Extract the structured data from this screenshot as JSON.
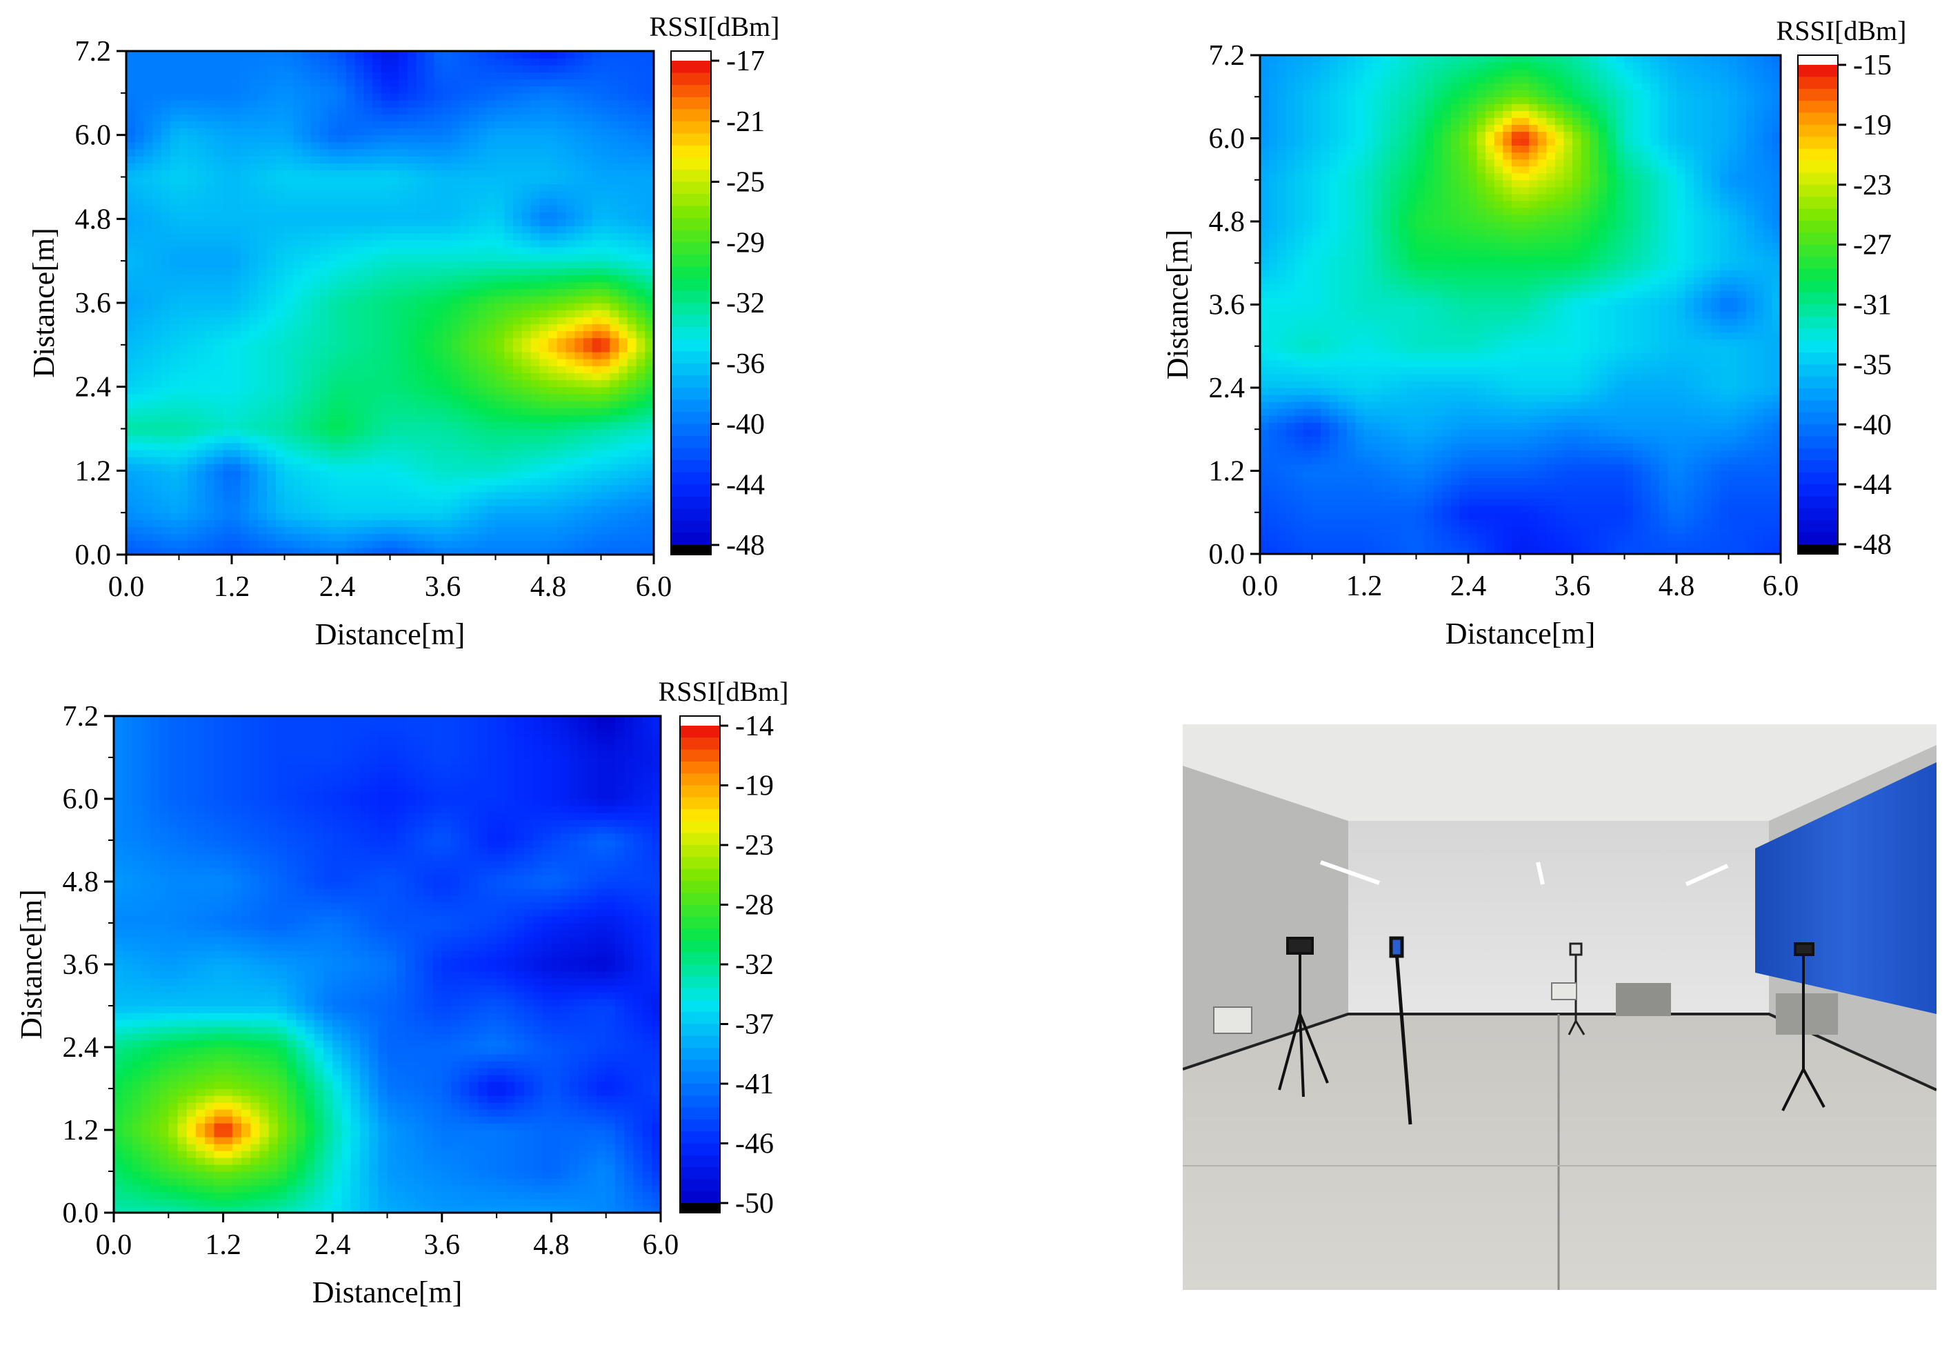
{
  "chart_data": [
    {
      "type": "heatmap",
      "title": "",
      "xlabel": "Distance[m]",
      "ylabel": "Distance[m]",
      "colorbar_label": "RSSI[dBm]",
      "xlim": [
        0,
        6
      ],
      "ylim": [
        0,
        7.2
      ],
      "x_ticks": [
        "0.0",
        "1.2",
        "2.4",
        "3.6",
        "4.8",
        "6.0"
      ],
      "y_ticks": [
        "0.0",
        "1.2",
        "2.4",
        "3.6",
        "4.8",
        "6.0",
        "7.2"
      ],
      "colorbar_ticks": [
        "-17",
        "-21",
        "-25",
        "-29",
        "-32",
        "-36",
        "-40",
        "-44",
        "-48"
      ],
      "colorbar_range": [
        -48,
        -17
      ],
      "x": [
        0,
        0.6,
        1.2,
        1.8,
        2.4,
        3.0,
        3.6,
        4.2,
        4.8,
        5.4,
        6.0
      ],
      "y": [
        0,
        0.6,
        1.2,
        1.8,
        2.4,
        3.0,
        3.6,
        4.2,
        4.8,
        5.4,
        6.0,
        6.6,
        7.2
      ],
      "z": [
        [
          -42,
          -41,
          -42,
          -41,
          -40,
          -42,
          -40,
          -40,
          -40,
          -41,
          -41
        ],
        [
          -39,
          -38,
          -40,
          -37,
          -36,
          -36,
          -36,
          -38,
          -38,
          -39,
          -40
        ],
        [
          -38,
          -37,
          -41,
          -36,
          -35,
          -35,
          -34,
          -34,
          -35,
          -36,
          -37
        ],
        [
          -33,
          -33,
          -34,
          -33,
          -31,
          -33,
          -33,
          -32,
          -32,
          -33,
          -34
        ],
        [
          -36,
          -35,
          -35,
          -34,
          -32,
          -32,
          -31,
          -29,
          -27,
          -26,
          -30
        ],
        [
          -37,
          -36,
          -35,
          -34,
          -33,
          -32,
          -30,
          -27,
          -22,
          -17,
          -27
        ],
        [
          -38,
          -37,
          -37,
          -35,
          -33,
          -32,
          -31,
          -29,
          -28,
          -26,
          -31
        ],
        [
          -37,
          -38,
          -38,
          -36,
          -35,
          -34,
          -34,
          -34,
          -34,
          -34,
          -35
        ],
        [
          -38,
          -37,
          -37,
          -37,
          -37,
          -37,
          -37,
          -36,
          -40,
          -37,
          -38
        ],
        [
          -37,
          -36,
          -37,
          -36,
          -36,
          -36,
          -37,
          -37,
          -37,
          -38,
          -38
        ],
        [
          -41,
          -37,
          -38,
          -38,
          -41,
          -40,
          -40,
          -38,
          -38,
          -39,
          -40
        ],
        [
          -40,
          -40,
          -40,
          -39,
          -40,
          -44,
          -42,
          -41,
          -40,
          -41,
          -42
        ],
        [
          -40,
          -40,
          -40,
          -40,
          -42,
          -46,
          -41,
          -43,
          -45,
          -42,
          -42
        ]
      ]
    },
    {
      "type": "heatmap",
      "title": "",
      "xlabel": "Distance[m]",
      "ylabel": "Distance[m]",
      "colorbar_label": "RSSI[dBm]",
      "xlim": [
        0,
        6
      ],
      "ylim": [
        0,
        7.2
      ],
      "x_ticks": [
        "0.0",
        "1.2",
        "2.4",
        "3.6",
        "4.8",
        "6.0"
      ],
      "y_ticks": [
        "0.0",
        "1.2",
        "2.4",
        "3.6",
        "4.8",
        "6.0",
        "7.2"
      ],
      "colorbar_ticks": [
        "-15",
        "-19",
        "-23",
        "-27",
        "-31",
        "-35",
        "-40",
        "-44",
        "-48"
      ],
      "colorbar_range": [
        -48,
        -15
      ],
      "x": [
        0,
        0.6,
        1.2,
        1.8,
        2.4,
        3.0,
        3.6,
        4.2,
        4.8,
        5.4,
        6.0
      ],
      "y": [
        0,
        0.6,
        1.2,
        1.8,
        2.4,
        3.0,
        3.6,
        4.2,
        4.8,
        5.4,
        6.0,
        6.6,
        7.2
      ],
      "z": [
        [
          -43,
          -42,
          -42,
          -41,
          -42,
          -45,
          -44,
          -42,
          -42,
          -42,
          -43
        ],
        [
          -42,
          -41,
          -41,
          -41,
          -44,
          -44,
          -43,
          -43,
          -40,
          -42,
          -42
        ],
        [
          -41,
          -40,
          -40,
          -39,
          -41,
          -41,
          -42,
          -42,
          -39,
          -41,
          -41
        ],
        [
          -40,
          -43,
          -38,
          -37,
          -38,
          -38,
          -39,
          -38,
          -38,
          -38,
          -40
        ],
        [
          -36,
          -36,
          -35,
          -36,
          -36,
          -35,
          -35,
          -37,
          -37,
          -36,
          -37
        ],
        [
          -34,
          -33,
          -34,
          -33,
          -33,
          -34,
          -34,
          -35,
          -36,
          -36,
          -37
        ],
        [
          -34,
          -34,
          -33,
          -33,
          -32,
          -32,
          -34,
          -35,
          -36,
          -40,
          -36
        ],
        [
          -36,
          -34,
          -33,
          -30,
          -30,
          -30,
          -30,
          -32,
          -34,
          -36,
          -37
        ],
        [
          -37,
          -35,
          -33,
          -29,
          -28,
          -27,
          -28,
          -31,
          -34,
          -36,
          -39
        ],
        [
          -37,
          -35,
          -33,
          -30,
          -27,
          -22,
          -25,
          -31,
          -34,
          -38,
          -39
        ],
        [
          -38,
          -36,
          -34,
          -31,
          -26,
          -15,
          -24,
          -33,
          -36,
          -37,
          -40
        ],
        [
          -38,
          -36,
          -34,
          -32,
          -29,
          -26,
          -30,
          -33,
          -36,
          -37,
          -39
        ],
        [
          -38,
          -37,
          -35,
          -33,
          -32,
          -31,
          -32,
          -35,
          -37,
          -38,
          -40
        ]
      ]
    },
    {
      "type": "heatmap",
      "title": "",
      "xlabel": "Distance[m]",
      "ylabel": "Distance[m]",
      "colorbar_label": "RSSI[dBm]",
      "xlim": [
        0,
        6
      ],
      "ylim": [
        0,
        7.2
      ],
      "x_ticks": [
        "0.0",
        "1.2",
        "2.4",
        "3.6",
        "4.8",
        "6.0"
      ],
      "y_ticks": [
        "0.0",
        "1.2",
        "2.4",
        "3.6",
        "4.8",
        "6.0",
        "7.2"
      ],
      "colorbar_ticks": [
        "-14",
        "-19",
        "-23",
        "-28",
        "-32",
        "-37",
        "-41",
        "-46",
        "-50"
      ],
      "colorbar_range": [
        -50,
        -14
      ],
      "x": [
        0,
        0.6,
        1.2,
        1.8,
        2.4,
        3.0,
        3.6,
        4.2,
        4.8,
        5.4,
        6.0
      ],
      "y": [
        0,
        0.6,
        1.2,
        1.8,
        2.4,
        3.0,
        3.6,
        4.2,
        4.8,
        5.4,
        6.0,
        6.6,
        7.2
      ],
      "z": [
        [
          -33,
          -33,
          -32,
          -33,
          -35,
          -38,
          -39,
          -39,
          -39,
          -40,
          -42
        ],
        [
          -31,
          -28,
          -26,
          -28,
          -34,
          -39,
          -40,
          -41,
          -42,
          -40,
          -45
        ],
        [
          -29,
          -25,
          -14,
          -25,
          -33,
          -39,
          -41,
          -41,
          -42,
          -42,
          -46
        ],
        [
          -30,
          -27,
          -25,
          -27,
          -34,
          -41,
          -42,
          -47,
          -43,
          -46,
          -44
        ],
        [
          -32,
          -30,
          -29,
          -30,
          -37,
          -42,
          -42,
          -41,
          -43,
          -44,
          -45
        ],
        [
          -37,
          -37,
          -37,
          -37,
          -41,
          -42,
          -44,
          -43,
          -45,
          -44,
          -47
        ],
        [
          -38,
          -39,
          -38,
          -39,
          -40,
          -41,
          -45,
          -46,
          -48,
          -49,
          -45
        ],
        [
          -40,
          -40,
          -41,
          -42,
          -41,
          -43,
          -43,
          -44,
          -46,
          -47,
          -45
        ],
        [
          -39,
          -40,
          -40,
          -42,
          -44,
          -43,
          -45,
          -43,
          -42,
          -44,
          -44
        ],
        [
          -40,
          -41,
          -42,
          -43,
          -44,
          -45,
          -43,
          -46,
          -44,
          -42,
          -45
        ],
        [
          -40,
          -42,
          -43,
          -44,
          -45,
          -46,
          -45,
          -45,
          -46,
          -48,
          -46
        ],
        [
          -40,
          -42,
          -43,
          -44,
          -44,
          -45,
          -44,
          -45,
          -46,
          -48,
          -47
        ],
        [
          -40,
          -42,
          -43,
          -44,
          -44,
          -44,
          -44,
          -45,
          -47,
          -50,
          -46
        ]
      ]
    }
  ]
}
